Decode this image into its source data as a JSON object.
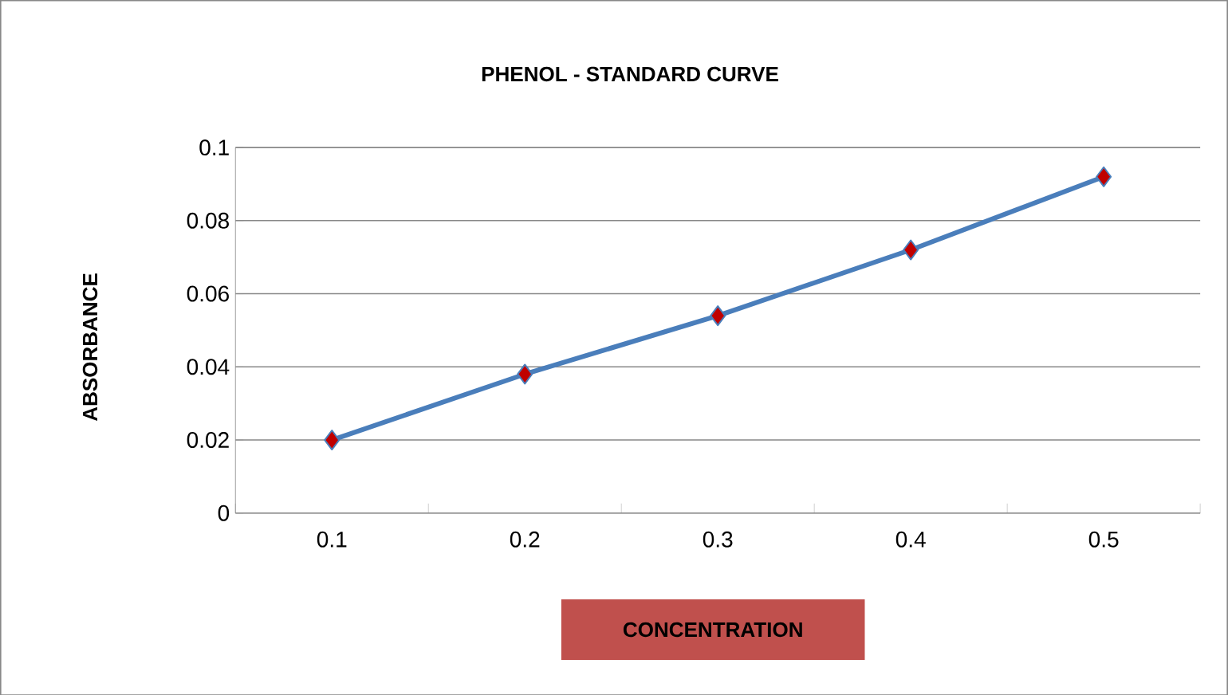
{
  "chart_data": {
    "type": "line",
    "title": "PHENOL  -  STANDARD  CURVE",
    "xlabel": "CONCENTRATION",
    "ylabel": "ABSORBANCE",
    "categories": [
      "0.1",
      "0.2",
      "0.3",
      "0.4",
      "0.5"
    ],
    "series": [
      {
        "color": "#4a7ebb",
        "values": [
          0.02,
          0.038,
          0.054,
          0.072,
          0.092
        ]
      }
    ],
    "ylim": [
      0,
      0.1
    ],
    "yticks": [
      0,
      0.02,
      0.04,
      0.06,
      0.08,
      0.1
    ],
    "grid": "y",
    "marker": "diamond",
    "line_style": "solid"
  }
}
